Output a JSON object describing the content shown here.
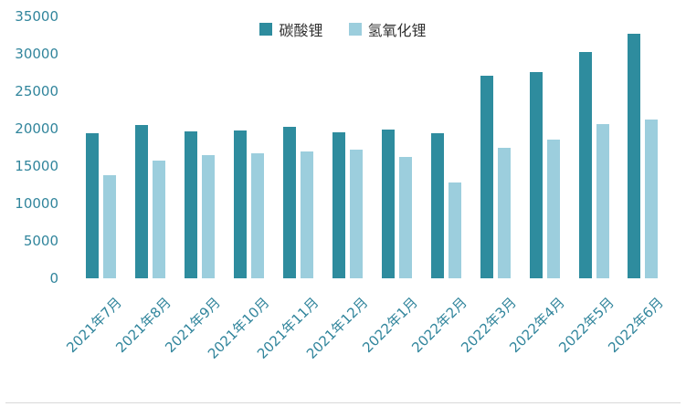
{
  "chart_data": {
    "type": "bar",
    "title": "",
    "categories": [
      "2021年7月",
      "2021年8月",
      "2021年9月",
      "2021年10月",
      "2021年11月",
      "2021年12月",
      "2022年1月",
      "2022年2月",
      "2022年3月",
      "2022年4月",
      "2022年5月",
      "2022年6月"
    ],
    "series": [
      {
        "name": "碳酸锂",
        "color": "#2E8C9E",
        "values": [
          19400,
          20500,
          19600,
          19800,
          20300,
          19500,
          19900,
          19400,
          27100,
          27600,
          30200,
          32700
        ]
      },
      {
        "name": "氢氧化锂",
        "color": "#9CCEDD",
        "values": [
          13800,
          15700,
          16500,
          16700,
          16900,
          17200,
          16200,
          12800,
          17500,
          18500,
          20600,
          21200
        ]
      }
    ],
    "xlabel": "",
    "ylabel": "",
    "ylim": [
      0,
      35000
    ],
    "ytick_step": 5000,
    "yticks": [
      0,
      5000,
      10000,
      15000,
      20000,
      25000,
      30000,
      35000
    ],
    "grid": false,
    "legend_position": "top-center",
    "axis_label_color": "#31859C",
    "legend_text_color": "#333333"
  }
}
